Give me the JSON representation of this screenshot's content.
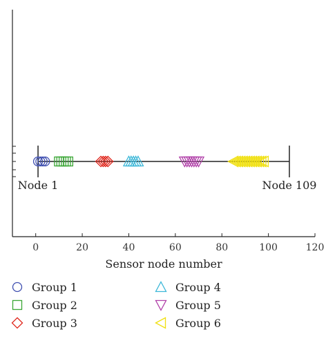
{
  "chart_data": {
    "type": "scatter",
    "xlabel": "Sensor node number",
    "ylabel": "",
    "xlim": [
      -10,
      120
    ],
    "xticks": [
      0,
      20,
      40,
      60,
      80,
      100,
      120
    ],
    "grid": false,
    "legend_placement": "bottom",
    "line": {
      "from": 1,
      "to": 109
    },
    "annotations": [
      {
        "text": "Node 1",
        "x": 1
      },
      {
        "text": "Node 109",
        "x": 109
      }
    ],
    "series": [
      {
        "name": "Group 1",
        "marker": "circle",
        "color": "#3f4fb0",
        "x": [
          1,
          2,
          3,
          4
        ]
      },
      {
        "name": "Group 2",
        "marker": "square",
        "color": "#3aa635",
        "x": [
          10,
          11,
          12,
          13,
          14
        ]
      },
      {
        "name": "Group 3",
        "marker": "diamond",
        "color": "#e0261c",
        "x": [
          28,
          29,
          30,
          31
        ]
      },
      {
        "name": "Group 4",
        "marker": "triangle-up",
        "color": "#3bb7d8",
        "x": [
          40,
          41,
          42,
          43,
          44
        ]
      },
      {
        "name": "Group 5",
        "marker": "triangle-down",
        "color": "#b03fa8",
        "x": [
          64,
          65,
          66,
          67,
          68,
          69,
          70
        ]
      },
      {
        "name": "Group 6",
        "marker": "triangle-left",
        "color": "#f0e010",
        "x": [
          85,
          86,
          87,
          88,
          89,
          90,
          91,
          92,
          93,
          94,
          95,
          96,
          97,
          98
        ]
      }
    ]
  }
}
